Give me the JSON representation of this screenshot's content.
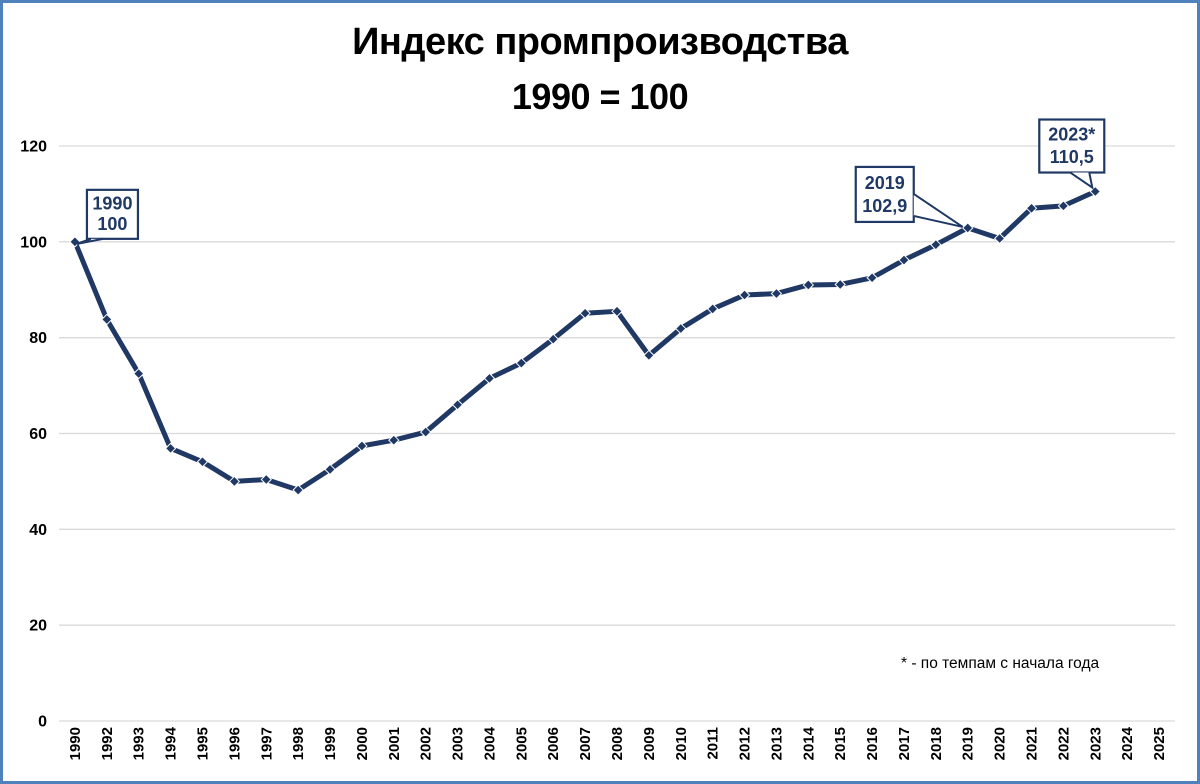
{
  "window": {
    "background": "#ffffff",
    "frame_border_color": "#4f81bd"
  },
  "chart_data": {
    "type": "line",
    "title": "Индекс промпроизводства",
    "subtitle": "1990 = 100",
    "footnote": "* - по темпам с начала года",
    "categories": [
      "1990",
      "1992",
      "1993",
      "1994",
      "1995",
      "1996",
      "1997",
      "1998",
      "1999",
      "2000",
      "2001",
      "2002",
      "2003",
      "2004",
      "2005",
      "2006",
      "2007",
      "2008",
      "2009",
      "2010",
      "2011",
      "2012",
      "2013",
      "2014",
      "2015",
      "2016",
      "2017",
      "2018",
      "2019",
      "2020",
      "2021",
      "2022",
      "2023",
      "2024",
      "2025"
    ],
    "series": [
      {
        "values": [
          100,
          83.8,
          72.5,
          56.9,
          54.1,
          50,
          50.4,
          48.2,
          52.5,
          57.4,
          58.6,
          60.3,
          66,
          71.5,
          74.7,
          79.7,
          85.1,
          85.5,
          76.3,
          81.9,
          86,
          88.9,
          89.2,
          91,
          91.1,
          92.5,
          96.2,
          99.4,
          102.9,
          100.7,
          107,
          107.5,
          110.5,
          null,
          null
        ]
      }
    ],
    "ylim": [
      0,
      120
    ],
    "yticks": [
      0,
      20,
      40,
      60,
      80,
      100,
      120
    ],
    "grid": true,
    "legend": "none",
    "x_labels_rotated_90": true,
    "line_color": "#1f3864",
    "marker": "diamond",
    "gridline_color": "#d9d9d9",
    "axis_text_color": "#000000",
    "callout_border_color": "#1f3864",
    "callout_fill": "#ffffff",
    "callouts": [
      {
        "target_year": "1990",
        "lines": [
          "1990",
          "100"
        ]
      },
      {
        "target_year": "2019",
        "lines": [
          "2019",
          "102,9"
        ]
      },
      {
        "target_year": "2023",
        "lines": [
          "2023*",
          "110,5"
        ]
      }
    ]
  }
}
